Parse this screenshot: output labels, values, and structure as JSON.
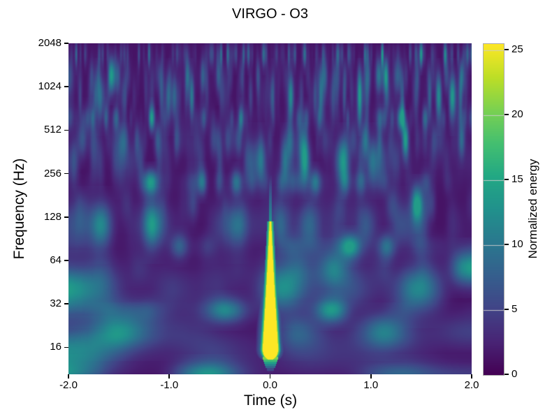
{
  "figure": {
    "title": "VIRGO - O3",
    "background_color": "#ffffff",
    "text_color": "#000000"
  },
  "chart_data": {
    "type": "heatmap",
    "subtype": "q-transform spectrogram",
    "title": "VIRGO - O3",
    "xlabel": "Time (s)",
    "ylabel": "Frequency (Hz)",
    "xlim": [
      -2.0,
      2.0
    ],
    "x_ticks": [
      -2.0,
      -1.0,
      0.0,
      1.0,
      2.0
    ],
    "x_tick_labels": [
      "-2.0",
      "-1.0",
      "0.0",
      "1.0",
      "2.0"
    ],
    "y_scale": "log2",
    "ylim_hz": [
      10.4,
      2048
    ],
    "y_ticks_hz": [
      16,
      32,
      64,
      128,
      256,
      512,
      1024,
      2048
    ],
    "grid": false,
    "colorbar": {
      "label": "Normalized energy",
      "ticks": [
        0,
        5,
        10,
        15,
        20,
        25
      ],
      "vmin": 0,
      "vmax": 25.5,
      "colormap": "viridis",
      "position": "right"
    },
    "colormap_stops": [
      [
        0.0,
        "#440154"
      ],
      [
        0.1,
        "#482475"
      ],
      [
        0.2,
        "#414487"
      ],
      [
        0.3,
        "#355f8d"
      ],
      [
        0.4,
        "#2a788e"
      ],
      [
        0.5,
        "#21918c"
      ],
      [
        0.6,
        "#22a884"
      ],
      [
        0.7,
        "#44bf70"
      ],
      [
        0.8,
        "#7ad151"
      ],
      [
        0.9,
        "#bdde26"
      ],
      [
        1.0,
        "#fde725"
      ]
    ],
    "event": {
      "description": "loud saturated burst (chirp) centered at time 0",
      "time_s": 0.0,
      "freq_extent_hz": [
        11,
        120
      ],
      "peak_normalized_energy": 25.5,
      "shape": "teardrop widening toward low frequency, thin teal spike above tip, stepped teal bands below"
    },
    "noise": {
      "character": "dark purple background with faint vertical streaks; streaks are thin at high frequency and widen into soft blobs at low frequency",
      "typical_energy_range": [
        0,
        10
      ],
      "seed": 987654321
    }
  }
}
